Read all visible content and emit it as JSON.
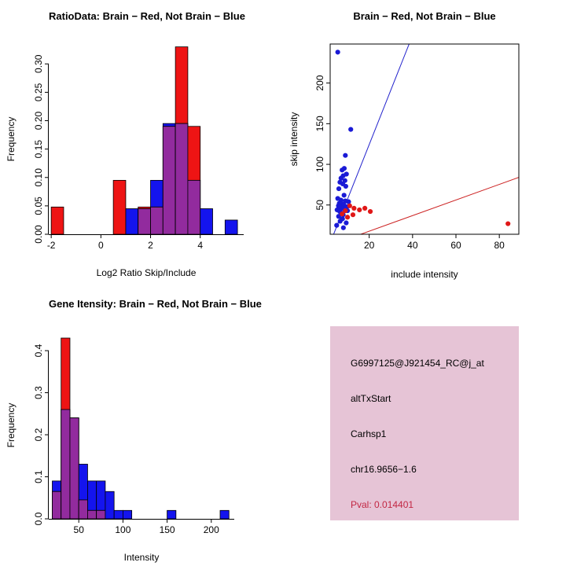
{
  "figure": {
    "background": "#FFFFFF"
  },
  "chart_data": [
    {
      "type": "bar",
      "panel": "top-left",
      "title": "RatioData: Brain − Red, Not Brain − Blue",
      "xlabel": "Log2 Ratio Skip/Include",
      "ylabel": "Frequency",
      "xlim": [
        -2.1,
        5.75
      ],
      "ylim": [
        0,
        0.335
      ],
      "xticks": [
        "-2",
        "0",
        "2",
        "4"
      ],
      "yticks": [
        "0.00",
        "0.05",
        "0.10",
        "0.15",
        "0.20",
        "0.25",
        "0.30"
      ],
      "grid": false,
      "legend": "none",
      "bin_start": -2,
      "bin_width": 0.5,
      "overlap_color": "#922B9E",
      "series": [
        {
          "name": "Not Brain (blue)",
          "color": "#1414EE",
          "values": [
            0,
            0,
            0,
            0,
            0,
            0,
            0.045,
            0.045,
            0.095,
            0.195,
            0.195,
            0.095,
            0.045,
            0,
            0.025
          ]
        },
        {
          "name": "Brain (red)",
          "color": "#EE1414",
          "values": [
            0.048,
            0,
            0,
            0,
            0,
            0.095,
            0,
            0.048,
            0.048,
            0.19,
            0.33,
            0.19,
            0,
            0,
            0
          ]
        }
      ]
    },
    {
      "type": "scatter",
      "panel": "top-right",
      "title": "Brain − Red, Not Brain − Blue",
      "xlabel": "include intensity",
      "ylabel": "skip intensity",
      "xlim": [
        2,
        89
      ],
      "ylim": [
        14,
        248
      ],
      "xticks": [
        "20",
        "40",
        "60",
        "80"
      ],
      "yticks": [
        "50",
        "100",
        "150",
        "200"
      ],
      "grid": false,
      "box": true,
      "series": [
        {
          "name": "Not Brain (blue)",
          "color": "#1A1AD6",
          "points": [
            [
              5.5,
              238
            ],
            [
              11.5,
              143
            ],
            [
              9,
              111
            ],
            [
              8.5,
              95
            ],
            [
              7.5,
              93
            ],
            [
              9.5,
              88
            ],
            [
              8,
              86
            ],
            [
              7,
              83
            ],
            [
              8.8,
              80
            ],
            [
              6.5,
              78
            ],
            [
              7.8,
              76
            ],
            [
              9.2,
              73
            ],
            [
              6,
              70
            ],
            [
              8.4,
              62
            ],
            [
              5.5,
              58
            ],
            [
              7,
              56
            ],
            [
              9,
              55
            ],
            [
              10.5,
              54
            ],
            [
              6.2,
              52
            ],
            [
              7.6,
              51
            ],
            [
              8.2,
              50
            ],
            [
              5.8,
              49
            ],
            [
              9.8,
              48
            ],
            [
              6.8,
              47
            ],
            [
              7.4,
              46
            ],
            [
              8.9,
              45
            ],
            [
              5.2,
              44
            ],
            [
              10,
              43
            ],
            [
              6.4,
              42
            ],
            [
              7.1,
              40
            ],
            [
              8,
              38
            ],
            [
              5.9,
              36
            ],
            [
              7.7,
              33
            ],
            [
              6.6,
              30
            ],
            [
              9.4,
              28
            ],
            [
              5,
              25
            ],
            [
              8.1,
              22
            ]
          ]
        },
        {
          "name": "Brain (red)",
          "color": "#E01717",
          "points": [
            [
              11,
              49
            ],
            [
              13,
              46
            ],
            [
              15.5,
              44
            ],
            [
              18,
              46
            ],
            [
              20.5,
              42
            ],
            [
              9,
              43
            ],
            [
              7.5,
              39
            ],
            [
              12.5,
              38
            ],
            [
              10,
              35
            ],
            [
              84,
              27
            ]
          ]
        }
      ],
      "lines": [
        {
          "name": "not-brain-fit-line",
          "color": "#2222CC",
          "from": [
            1.5,
            0
          ],
          "to": [
            39,
            252
          ]
        },
        {
          "name": "brain-fit-line",
          "color": "#CC2222",
          "from": [
            1.5,
            0
          ],
          "to": [
            89,
            84
          ]
        }
      ]
    },
    {
      "type": "bar",
      "panel": "bottom-left",
      "title": "Gene Itensity: Brain − Red, Not Brain − Blue",
      "xlabel": "Intensity",
      "ylabel": "Frequency",
      "xlim": [
        16,
        226
      ],
      "ylim": [
        0,
        0.445
      ],
      "xticks": [
        "50",
        "100",
        "150",
        "200"
      ],
      "yticks": [
        "0.0",
        "0.1",
        "0.2",
        "0.3",
        "0.4"
      ],
      "grid": false,
      "legend": "none",
      "bin_start": 20,
      "bin_width": 10,
      "overlap_color": "#922B9E",
      "series": [
        {
          "name": "Not Brain (blue)",
          "color": "#1414EE",
          "values": [
            0.09,
            0.26,
            0.24,
            0.13,
            0.09,
            0.09,
            0.065,
            0.02,
            0.02,
            0,
            0,
            0,
            0,
            0.02,
            0,
            0,
            0,
            0,
            0,
            0.02
          ]
        },
        {
          "name": "Brain (red)",
          "color": "#EE1414",
          "values": [
            0.065,
            0.43,
            0.24,
            0.045,
            0.02,
            0.02,
            0,
            0,
            0,
            0,
            0,
            0,
            0,
            0,
            0,
            0,
            0,
            0,
            0,
            0
          ]
        }
      ]
    }
  ],
  "info_panel": {
    "background": "#E6C4D6",
    "lines": [
      {
        "id": "probe-id",
        "text": "G6997125@J921454_RC@j_at",
        "color": "#000000"
      },
      {
        "id": "event-type",
        "text": "altTxStart",
        "color": "#000000"
      },
      {
        "id": "gene-name",
        "text": "Carhsp1",
        "color": "#000000"
      },
      {
        "id": "locus",
        "text": "chr16.9656−1.6",
        "color": "#000000"
      },
      {
        "id": "pval",
        "text": "Pval: 0.014401",
        "color": "#C22743"
      }
    ]
  }
}
